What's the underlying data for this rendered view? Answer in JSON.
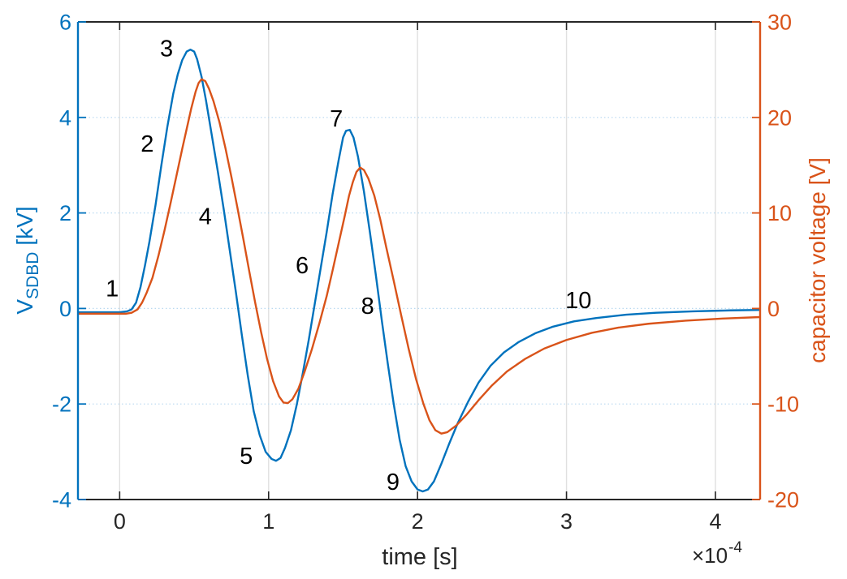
{
  "chart_data": {
    "type": "line",
    "title": "",
    "x_axis": {
      "label": "time [s]",
      "exponent_times": "×10",
      "exponent_power": "-4",
      "range": [
        -0.28,
        4.3
      ],
      "ticks": [
        0,
        1,
        2,
        3,
        4
      ],
      "tick_labels": [
        "0",
        "1",
        "2",
        "3",
        "4"
      ],
      "grid": true
    },
    "y_left": {
      "label_main": "V",
      "label_sub": "SDBD",
      "label_unit": "[kV]",
      "color": "#0072BD",
      "range": [
        -4,
        6
      ],
      "ticks": [
        -4,
        -2,
        0,
        2,
        4,
        6
      ],
      "tick_labels": [
        "-4",
        "-2",
        "0",
        "2",
        "4",
        "6"
      ],
      "grid": true
    },
    "y_right": {
      "label": "capacitor voltage [V]",
      "color": "#D95319",
      "range": [
        -20,
        30
      ],
      "ticks": [
        -20,
        -10,
        0,
        10,
        20,
        30
      ],
      "tick_labels": [
        "-20",
        "-10",
        "0",
        "10",
        "20",
        "30"
      ]
    },
    "colors": {
      "blue_line": "#0072BD",
      "orange_line": "#D95319",
      "dark_spine": "#262626",
      "grid_vertical": "#e0e0e0",
      "grid_horizontal": "#b9d9f0",
      "annotation_text": "#000000"
    },
    "series": [
      {
        "name": "V_SDBD",
        "axis": "left",
        "color": "#0072BD",
        "points": [
          [
            -0.28,
            -0.08
          ],
          [
            -0.15,
            -0.08
          ],
          [
            0.0,
            -0.08
          ],
          [
            0.05,
            -0.06
          ],
          [
            0.08,
            -0.02
          ],
          [
            0.11,
            0.12
          ],
          [
            0.14,
            0.45
          ],
          [
            0.17,
            0.9
          ],
          [
            0.2,
            1.4
          ],
          [
            0.24,
            2.15
          ],
          [
            0.28,
            3.0
          ],
          [
            0.32,
            3.8
          ],
          [
            0.36,
            4.5
          ],
          [
            0.39,
            4.9
          ],
          [
            0.42,
            5.2
          ],
          [
            0.45,
            5.38
          ],
          [
            0.475,
            5.42
          ],
          [
            0.5,
            5.38
          ],
          [
            0.52,
            5.22
          ],
          [
            0.55,
            4.85
          ],
          [
            0.58,
            4.35
          ],
          [
            0.62,
            3.6
          ],
          [
            0.66,
            2.85
          ],
          [
            0.7,
            2.05
          ],
          [
            0.74,
            1.2
          ],
          [
            0.78,
            0.35
          ],
          [
            0.82,
            -0.55
          ],
          [
            0.86,
            -1.4
          ],
          [
            0.9,
            -2.15
          ],
          [
            0.94,
            -2.65
          ],
          [
            0.98,
            -3.0
          ],
          [
            1.02,
            -3.15
          ],
          [
            1.05,
            -3.19
          ],
          [
            1.08,
            -3.13
          ],
          [
            1.11,
            -2.92
          ],
          [
            1.15,
            -2.55
          ],
          [
            1.19,
            -2.0
          ],
          [
            1.23,
            -1.35
          ],
          [
            1.27,
            -0.65
          ],
          [
            1.31,
            0.1
          ],
          [
            1.35,
            0.85
          ],
          [
            1.39,
            1.6
          ],
          [
            1.43,
            2.4
          ],
          [
            1.47,
            3.1
          ],
          [
            1.5,
            3.58
          ],
          [
            1.52,
            3.72
          ],
          [
            1.545,
            3.74
          ],
          [
            1.57,
            3.58
          ],
          [
            1.6,
            3.18
          ],
          [
            1.64,
            2.45
          ],
          [
            1.68,
            1.6
          ],
          [
            1.72,
            0.7
          ],
          [
            1.76,
            -0.25
          ],
          [
            1.8,
            -1.15
          ],
          [
            1.84,
            -2.0
          ],
          [
            1.88,
            -2.75
          ],
          [
            1.92,
            -3.3
          ],
          [
            1.96,
            -3.62
          ],
          [
            2.0,
            -3.79
          ],
          [
            2.035,
            -3.83
          ],
          [
            2.07,
            -3.79
          ],
          [
            2.11,
            -3.62
          ],
          [
            2.16,
            -3.25
          ],
          [
            2.21,
            -2.85
          ],
          [
            2.27,
            -2.4
          ],
          [
            2.34,
            -1.95
          ],
          [
            2.41,
            -1.55
          ],
          [
            2.49,
            -1.2
          ],
          [
            2.58,
            -0.92
          ],
          [
            2.68,
            -0.7
          ],
          [
            2.79,
            -0.52
          ],
          [
            2.91,
            -0.38
          ],
          [
            3.05,
            -0.27
          ],
          [
            3.2,
            -0.2
          ],
          [
            3.4,
            -0.13
          ],
          [
            3.6,
            -0.09
          ],
          [
            3.85,
            -0.06
          ],
          [
            4.1,
            -0.04
          ],
          [
            4.3,
            -0.03
          ]
        ]
      },
      {
        "name": "capacitor voltage",
        "axis": "right",
        "color": "#D95319",
        "points": [
          [
            -0.28,
            -0.55
          ],
          [
            -0.1,
            -0.55
          ],
          [
            0.04,
            -0.55
          ],
          [
            0.08,
            -0.45
          ],
          [
            0.12,
            -0.1
          ],
          [
            0.15,
            0.6
          ],
          [
            0.18,
            1.6
          ],
          [
            0.22,
            3.2
          ],
          [
            0.26,
            5.5
          ],
          [
            0.3,
            8.1
          ],
          [
            0.34,
            10.9
          ],
          [
            0.38,
            13.8
          ],
          [
            0.42,
            16.7
          ],
          [
            0.45,
            18.8
          ],
          [
            0.48,
            20.9
          ],
          [
            0.51,
            22.7
          ],
          [
            0.53,
            23.6
          ],
          [
            0.55,
            24.0
          ],
          [
            0.575,
            23.8
          ],
          [
            0.6,
            23.0
          ],
          [
            0.63,
            21.7
          ],
          [
            0.67,
            19.5
          ],
          [
            0.71,
            16.8
          ],
          [
            0.75,
            13.8
          ],
          [
            0.79,
            10.6
          ],
          [
            0.83,
            7.3
          ],
          [
            0.87,
            3.9
          ],
          [
            0.91,
            0.6
          ],
          [
            0.95,
            -2.5
          ],
          [
            0.99,
            -5.3
          ],
          [
            1.03,
            -7.6
          ],
          [
            1.07,
            -9.2
          ],
          [
            1.1,
            -9.85
          ],
          [
            1.13,
            -9.9
          ],
          [
            1.16,
            -9.5
          ],
          [
            1.2,
            -8.4
          ],
          [
            1.24,
            -6.7
          ],
          [
            1.29,
            -4.3
          ],
          [
            1.34,
            -1.6
          ],
          [
            1.39,
            1.3
          ],
          [
            1.43,
            4.0
          ],
          [
            1.47,
            6.8
          ],
          [
            1.51,
            9.6
          ],
          [
            1.54,
            11.8
          ],
          [
            1.565,
            13.2
          ],
          [
            1.59,
            14.3
          ],
          [
            1.615,
            14.75
          ],
          [
            1.64,
            14.5
          ],
          [
            1.67,
            13.6
          ],
          [
            1.71,
            11.8
          ],
          [
            1.75,
            9.3
          ],
          [
            1.79,
            6.4
          ],
          [
            1.84,
            2.9
          ],
          [
            1.89,
            -0.7
          ],
          [
            1.94,
            -4.2
          ],
          [
            1.99,
            -7.4
          ],
          [
            2.04,
            -10.0
          ],
          [
            2.08,
            -11.7
          ],
          [
            2.12,
            -12.75
          ],
          [
            2.16,
            -13.1
          ],
          [
            2.2,
            -12.95
          ],
          [
            2.26,
            -12.25
          ],
          [
            2.33,
            -11.1
          ],
          [
            2.41,
            -9.6
          ],
          [
            2.5,
            -8.05
          ],
          [
            2.6,
            -6.6
          ],
          [
            2.72,
            -5.3
          ],
          [
            2.85,
            -4.2
          ],
          [
            3.0,
            -3.3
          ],
          [
            3.17,
            -2.55
          ],
          [
            3.35,
            -2.0
          ],
          [
            3.55,
            -1.6
          ],
          [
            3.8,
            -1.28
          ],
          [
            4.05,
            -1.05
          ],
          [
            4.3,
            -0.9
          ]
        ]
      }
    ],
    "annotations": [
      {
        "label": "1",
        "t": -0.05,
        "v": 0.42
      },
      {
        "label": "2",
        "t": 0.185,
        "v": 3.45
      },
      {
        "label": "3",
        "t": 0.315,
        "v": 5.45
      },
      {
        "label": "4",
        "t": 0.575,
        "v": 1.93
      },
      {
        "label": "5",
        "t": 0.85,
        "v": -3.08
      },
      {
        "label": "6",
        "t": 1.225,
        "v": 0.91
      },
      {
        "label": "7",
        "t": 1.455,
        "v": 3.98
      },
      {
        "label": "8",
        "t": 1.665,
        "v": 0.06
      },
      {
        "label": "9",
        "t": 1.835,
        "v": -3.63
      },
      {
        "label": "10",
        "t": 3.08,
        "v": 0.18
      }
    ],
    "legend": {
      "visible": false
    }
  }
}
